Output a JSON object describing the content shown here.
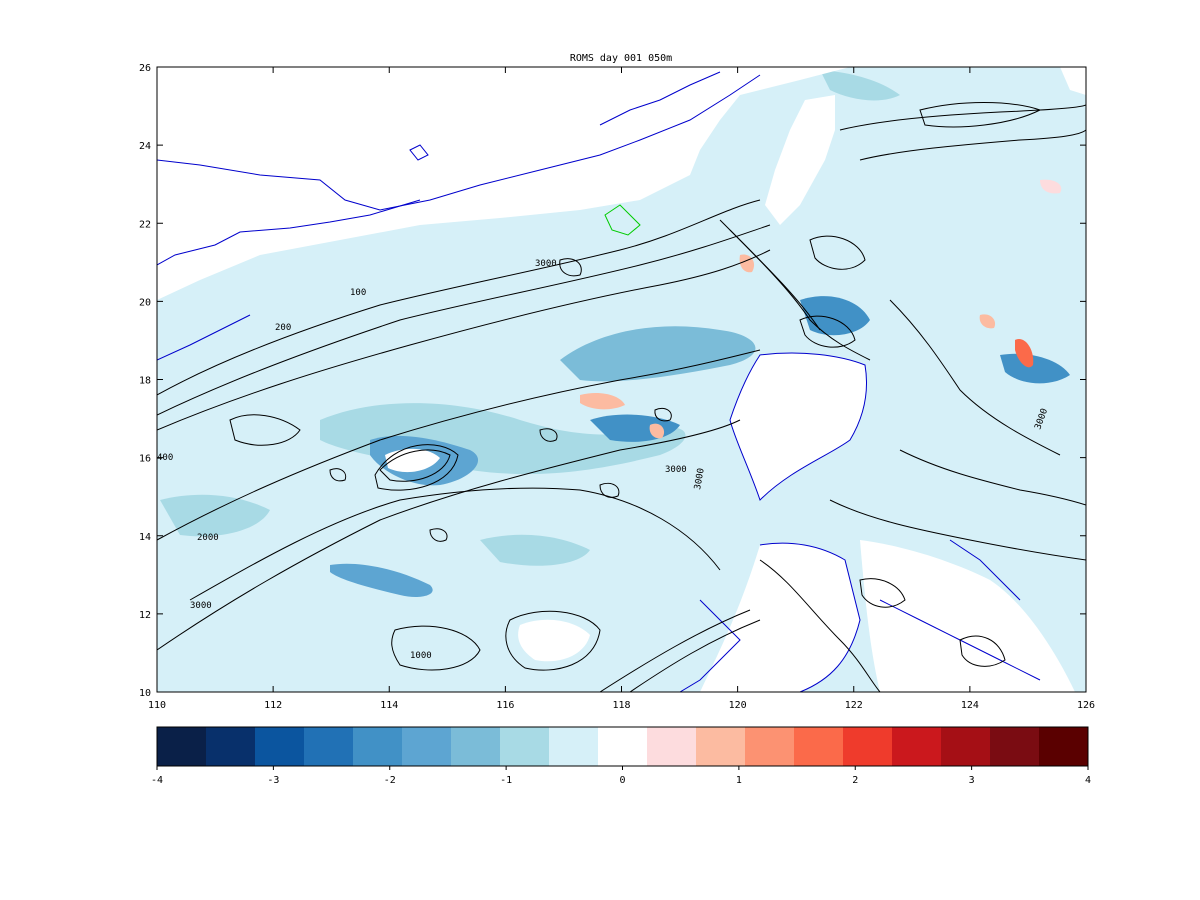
{
  "title": "ROMS  day  001 050m",
  "map": {
    "x_ticks": [
      "110",
      "112",
      "114",
      "116",
      "118",
      "120",
      "122",
      "124",
      "126"
    ],
    "y_ticks": [
      "26",
      "24",
      "22",
      "20",
      "18",
      "16",
      "14",
      "12",
      "10"
    ],
    "contour_labels": [
      "100",
      "3000",
      "200",
      "400",
      "2000",
      "3000",
      "1000",
      "3000",
      "3000",
      "3000"
    ]
  },
  "colorbar": {
    "ticks": [
      "-4",
      "-3",
      "-2",
      "-1",
      "0",
      "1",
      "2",
      "3",
      "4"
    ],
    "colors": [
      "#0a2048",
      "#08306b",
      "#0b559f",
      "#2171b5",
      "#4191c6",
      "#5da5d2",
      "#7bbcd8",
      "#a8dae5",
      "#d6f0f8",
      "#ffffff",
      "#fddcde",
      "#fcbba1",
      "#fc9272",
      "#fb6a4a",
      "#ef3b2c",
      "#cb181d",
      "#a50f15",
      "#7a0c12",
      "#5a0000"
    ]
  },
  "colors": {
    "land": "#ffffff",
    "sea_base": "#d6f0f8",
    "coastline": "#0000cc",
    "contour": "#000000",
    "river_green": "#00cc00"
  }
}
